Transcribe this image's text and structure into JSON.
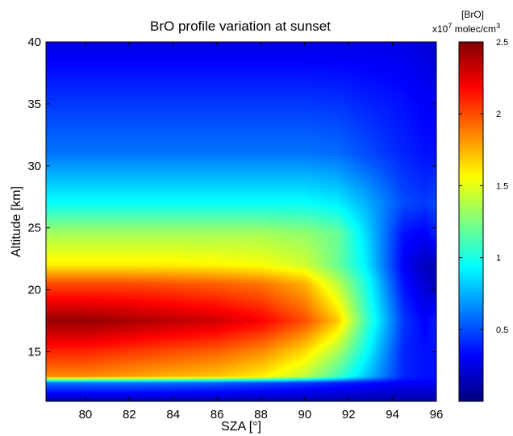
{
  "chart_data": {
    "type": "heatmap",
    "title": "BrO profile variation at sunset",
    "xlabel": "SZA [°]",
    "ylabel": "Altitude [km]",
    "xlim": [
      78.2,
      96
    ],
    "ylim": [
      11,
      40
    ],
    "xticks": [
      "80",
      "82",
      "84",
      "86",
      "88",
      "90",
      "92",
      "94",
      "96"
    ],
    "yticks": [
      "15",
      "20",
      "25",
      "30",
      "35",
      "40"
    ],
    "colorbar": {
      "label_line1": "[BrO]",
      "label_prefix": "x10",
      "label_exp": "7",
      "label_suffix": " molec/cm",
      "label_unit_exp": "3",
      "range": [
        0,
        2.5
      ],
      "ticks": [
        "0.5",
        "1",
        "1.5",
        "2",
        "2.5"
      ],
      "colormap": "jet"
    },
    "grid": false,
    "series": [
      {
        "altitude": 40,
        "values": [
          0.25,
          0.25,
          0.25,
          0.25,
          0.25,
          0.25,
          0.25,
          0.25,
          0.25,
          0.25,
          0.22,
          0.2
        ]
      },
      {
        "altitude": 35,
        "values": [
          0.45,
          0.45,
          0.45,
          0.45,
          0.45,
          0.45,
          0.45,
          0.44,
          0.4,
          0.35,
          0.3,
          0.3
        ]
      },
      {
        "altitude": 31,
        "values": [
          0.6,
          0.6,
          0.6,
          0.6,
          0.6,
          0.6,
          0.6,
          0.58,
          0.5,
          0.4,
          0.35,
          0.35
        ]
      },
      {
        "altitude": 27,
        "values": [
          0.95,
          0.95,
          0.95,
          0.95,
          0.95,
          0.95,
          0.95,
          0.9,
          0.75,
          0.5,
          0.45,
          0.5
        ]
      },
      {
        "altitude": 24.5,
        "values": [
          1.35,
          1.35,
          1.35,
          1.35,
          1.35,
          1.35,
          1.3,
          1.2,
          0.85,
          0.35,
          0.3,
          0.4
        ]
      },
      {
        "altitude": 22,
        "values": [
          1.6,
          1.6,
          1.6,
          1.6,
          1.58,
          1.55,
          1.45,
          1.2,
          0.9,
          0.3,
          0.15,
          0.15
        ]
      },
      {
        "altitude": 20.5,
        "values": [
          2.0,
          2.0,
          2.0,
          1.98,
          1.95,
          1.9,
          1.75,
          1.4,
          1.0,
          0.35,
          0.2,
          0.15
        ]
      },
      {
        "altitude": 17.5,
        "values": [
          2.45,
          2.45,
          2.4,
          2.35,
          2.3,
          2.2,
          2.0,
          1.7,
          1.1,
          0.45,
          0.3,
          0.4
        ]
      },
      {
        "altitude": 15,
        "values": [
          2.1,
          2.1,
          2.05,
          2.0,
          1.95,
          1.85,
          1.65,
          1.35,
          0.95,
          0.4,
          0.35,
          0.35
        ]
      },
      {
        "altitude": 13,
        "values": [
          1.85,
          1.85,
          1.8,
          1.75,
          1.7,
          1.6,
          1.4,
          1.1,
          0.8,
          0.4,
          0.35,
          0.35
        ]
      },
      {
        "altitude": 12.5,
        "values": [
          0.6,
          0.6,
          0.6,
          0.58,
          0.55,
          0.5,
          0.45,
          0.4,
          0.35,
          0.3,
          0.3,
          0.3
        ]
      },
      {
        "altitude": 11,
        "values": [
          0.1,
          0.1,
          0.1,
          0.1,
          0.1,
          0.1,
          0.1,
          0.1,
          0.1,
          0.1,
          0.1,
          0.1
        ]
      }
    ],
    "x": [
      78.2,
      80,
      82,
      84,
      86,
      88,
      90,
      91.5,
      92.8,
      94.5,
      95.5,
      96
    ]
  }
}
